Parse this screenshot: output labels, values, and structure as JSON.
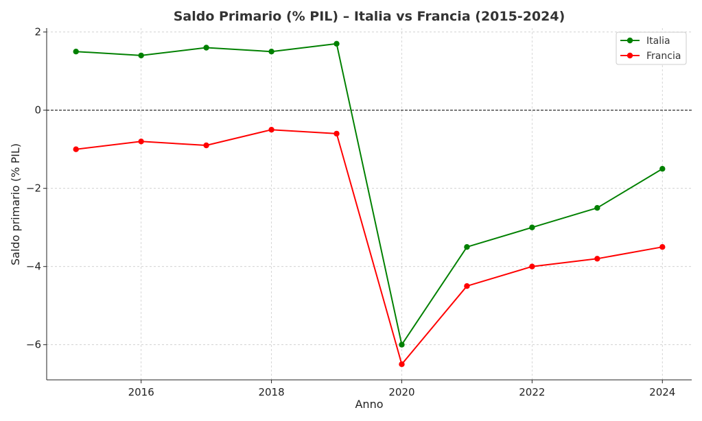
{
  "chart_data": {
    "type": "line",
    "title": "Saldo Primario (% PIL) – Italia vs Francia (2015-2024)",
    "xlabel": "Anno",
    "ylabel": "Saldo primario (% PIL)",
    "x": [
      2015,
      2016,
      2017,
      2018,
      2019,
      2020,
      2021,
      2022,
      2023,
      2024
    ],
    "xlim": [
      2014.55,
      2024.45
    ],
    "ylim": [
      -6.9,
      2.1
    ],
    "xticks": [
      2016,
      2018,
      2020,
      2022,
      2024
    ],
    "yticks": [
      2,
      0,
      -2,
      -4,
      -6
    ],
    "ytick_labels": [
      "2",
      "0",
      "−2",
      "−4",
      "−6"
    ],
    "zero_line": true,
    "grid": true,
    "legend_position": "top-right",
    "series": [
      {
        "name": "Italia",
        "color": "#008000",
        "values": [
          1.5,
          1.4,
          1.6,
          1.5,
          1.7,
          -6.0,
          -3.5,
          -3.0,
          -2.5,
          -1.5
        ]
      },
      {
        "name": "Francia",
        "color": "#ff0000",
        "values": [
          -1.0,
          -0.8,
          -0.9,
          -0.5,
          -0.6,
          -6.5,
          -4.5,
          -4.0,
          -3.8,
          -3.5
        ]
      }
    ]
  }
}
